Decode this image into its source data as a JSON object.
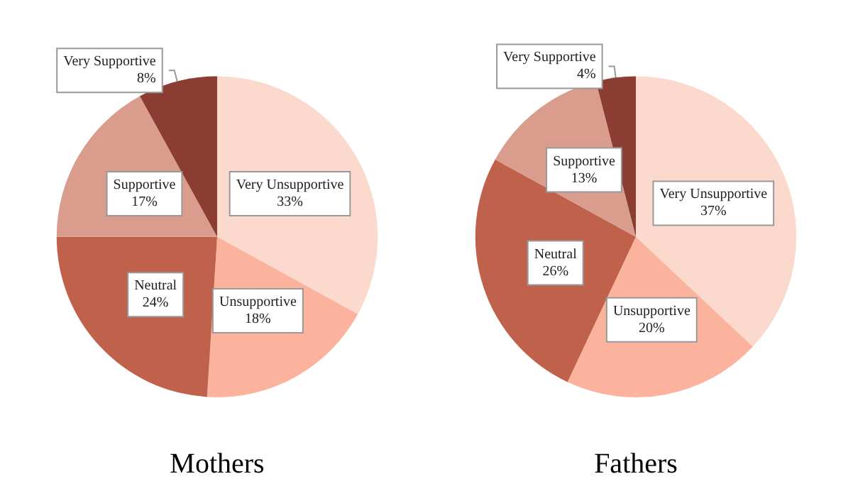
{
  "chart_data": [
    {
      "type": "pie",
      "title": "Mothers",
      "categories": [
        "Very Unsupportive",
        "Unsupportive",
        "Neutral",
        "Supportive",
        "Very Supportive"
      ],
      "values": [
        33,
        18,
        24,
        17,
        8
      ],
      "value_labels": [
        "33%",
        "18%",
        "24%",
        "17%",
        "8%"
      ],
      "colors": [
        "#fbd9cd",
        "#fcb39e",
        "#c0614c",
        "#d99c8d",
        "#8b3d33"
      ],
      "legend": false
    },
    {
      "type": "pie",
      "title": "Fathers",
      "categories": [
        "Very Unsupportive",
        "Unsupportive",
        "Neutral",
        "Supportive",
        "Very Supportive"
      ],
      "values": [
        37,
        20,
        26,
        13,
        4
      ],
      "value_labels": [
        "37%",
        "20%",
        "26%",
        "13%",
        "4%"
      ],
      "colors": [
        "#fbd9cd",
        "#fcb39e",
        "#c0614c",
        "#d99c8d",
        "#8b3d33"
      ],
      "legend": false
    }
  ]
}
